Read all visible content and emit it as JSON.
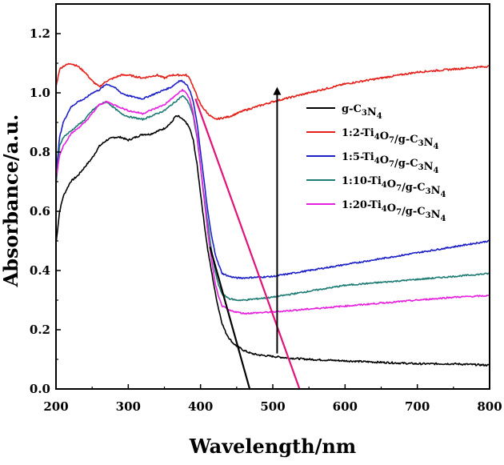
{
  "chart_data": {
    "type": "line",
    "xlabel": "Wavelength/nm",
    "ylabel": "Absorbance/a.u.",
    "xlim": [
      200,
      800
    ],
    "ylim": [
      0.0,
      1.3
    ],
    "xticks": [
      200,
      300,
      400,
      500,
      600,
      700,
      800
    ],
    "xtick_labels": [
      "200",
      "300",
      "400",
      "500",
      "600",
      "700",
      "800"
    ],
    "yticks": [
      0.0,
      0.2,
      0.4,
      0.6,
      0.8,
      1.0,
      1.2
    ],
    "ytick_labels": [
      "0.0",
      "0.2",
      "0.4",
      "0.6",
      "0.8",
      "1.0",
      "1.2"
    ],
    "legend_position": "right-center",
    "series": [
      {
        "name": "g-C3N4",
        "label_parts": [
          [
            "g-C",
            false
          ],
          [
            "3",
            true
          ],
          [
            "N",
            false
          ],
          [
            "4",
            true
          ]
        ],
        "color": "#000000",
        "x": [
          200,
          205,
          210,
          220,
          230,
          240,
          250,
          260,
          270,
          280,
          290,
          300,
          310,
          320,
          330,
          340,
          350,
          360,
          365,
          370,
          375,
          380,
          385,
          390,
          395,
          400,
          405,
          410,
          415,
          420,
          425,
          430,
          435,
          440,
          445,
          450,
          460,
          470,
          480,
          500,
          520,
          550,
          600,
          650,
          700,
          750,
          800
        ],
        "y": [
          0.49,
          0.6,
          0.65,
          0.7,
          0.72,
          0.75,
          0.78,
          0.82,
          0.84,
          0.85,
          0.85,
          0.84,
          0.85,
          0.86,
          0.86,
          0.87,
          0.88,
          0.9,
          0.92,
          0.92,
          0.91,
          0.9,
          0.88,
          0.84,
          0.76,
          0.66,
          0.56,
          0.47,
          0.4,
          0.33,
          0.27,
          0.22,
          0.19,
          0.17,
          0.155,
          0.145,
          0.13,
          0.12,
          0.115,
          0.11,
          0.105,
          0.1,
          0.095,
          0.09,
          0.085,
          0.085,
          0.08
        ],
        "noise": 0.006
      },
      {
        "name": "1:2-Ti4O7/g-C3N4",
        "label_parts": [
          [
            "1:2-Ti",
            false
          ],
          [
            "4",
            true
          ],
          [
            "O",
            false
          ],
          [
            "7",
            true
          ],
          [
            "/g-C",
            false
          ],
          [
            "3",
            true
          ],
          [
            "N",
            false
          ],
          [
            "4",
            true
          ]
        ],
        "color": "#e5201b",
        "x": [
          200,
          205,
          210,
          220,
          230,
          240,
          250,
          260,
          270,
          280,
          290,
          300,
          320,
          340,
          350,
          360,
          370,
          380,
          385,
          390,
          395,
          400,
          410,
          420,
          440,
          460,
          500,
          550,
          600,
          650,
          700,
          750,
          800
        ],
        "y": [
          1.02,
          1.08,
          1.09,
          1.1,
          1.09,
          1.07,
          1.04,
          1.02,
          1.04,
          1.05,
          1.06,
          1.06,
          1.05,
          1.06,
          1.05,
          1.06,
          1.06,
          1.06,
          1.05,
          1.02,
          0.99,
          0.96,
          0.93,
          0.91,
          0.92,
          0.94,
          0.97,
          1.0,
          1.03,
          1.05,
          1.07,
          1.08,
          1.09
        ],
        "noise": 0.006
      },
      {
        "name": "1:5-Ti4O7/g-C3N4",
        "label_parts": [
          [
            "1:5-Ti",
            false
          ],
          [
            "4",
            true
          ],
          [
            "O",
            false
          ],
          [
            "7",
            true
          ],
          [
            "/g-C",
            false
          ],
          [
            "3",
            true
          ],
          [
            "N",
            false
          ],
          [
            "4",
            true
          ]
        ],
        "color": "#1d1fc8",
        "x": [
          200,
          205,
          210,
          220,
          230,
          240,
          250,
          260,
          270,
          280,
          290,
          300,
          320,
          340,
          350,
          360,
          370,
          375,
          380,
          385,
          390,
          395,
          400,
          405,
          410,
          415,
          420,
          425,
          430,
          440,
          450,
          460,
          500,
          550,
          600,
          650,
          700,
          750,
          800
        ],
        "y": [
          0.72,
          0.85,
          0.9,
          0.95,
          0.97,
          0.98,
          1.0,
          1.01,
          1.03,
          1.02,
          1.0,
          0.99,
          0.98,
          1.0,
          1.01,
          1.02,
          1.04,
          1.04,
          1.03,
          1.01,
          0.97,
          0.9,
          0.8,
          0.7,
          0.6,
          0.52,
          0.46,
          0.42,
          0.39,
          0.38,
          0.375,
          0.375,
          0.38,
          0.4,
          0.42,
          0.44,
          0.46,
          0.48,
          0.5
        ],
        "noise": 0.005
      },
      {
        "name": "1:10-Ti4O7/g-C3N4",
        "label_parts": [
          [
            "1:10-Ti",
            false
          ],
          [
            "4",
            true
          ],
          [
            "O",
            false
          ],
          [
            "7",
            true
          ],
          [
            "/g-C",
            false
          ],
          [
            "3",
            true
          ],
          [
            "N",
            false
          ],
          [
            "4",
            true
          ]
        ],
        "color": "#1d7b74",
        "x": [
          200,
          205,
          210,
          220,
          230,
          240,
          250,
          260,
          270,
          280,
          290,
          300,
          320,
          340,
          350,
          360,
          370,
          375,
          380,
          385,
          390,
          395,
          400,
          405,
          410,
          415,
          420,
          425,
          430,
          440,
          450,
          460,
          500,
          550,
          600,
          650,
          700,
          750,
          800
        ],
        "y": [
          0.69,
          0.82,
          0.85,
          0.87,
          0.89,
          0.91,
          0.94,
          0.96,
          0.97,
          0.95,
          0.93,
          0.92,
          0.91,
          0.93,
          0.94,
          0.96,
          0.98,
          0.99,
          0.98,
          0.96,
          0.92,
          0.85,
          0.75,
          0.65,
          0.56,
          0.47,
          0.4,
          0.35,
          0.32,
          0.305,
          0.3,
          0.3,
          0.31,
          0.33,
          0.35,
          0.36,
          0.37,
          0.38,
          0.39
        ],
        "noise": 0.005
      },
      {
        "name": "1:20-Ti4O7/g-C3N4",
        "label_parts": [
          [
            "1:20-Ti",
            false
          ],
          [
            "4",
            true
          ],
          [
            "O",
            false
          ],
          [
            "7",
            true
          ],
          [
            "/g-C",
            false
          ],
          [
            "3",
            true
          ],
          [
            "N",
            false
          ],
          [
            "4",
            true
          ]
        ],
        "color": "#e81ee0",
        "x": [
          200,
          205,
          210,
          220,
          230,
          240,
          250,
          260,
          270,
          280,
          290,
          300,
          320,
          340,
          350,
          360,
          370,
          375,
          380,
          385,
          390,
          395,
          400,
          405,
          410,
          415,
          420,
          425,
          430,
          440,
          450,
          460,
          500,
          550,
          600,
          650,
          700,
          750,
          800
        ],
        "y": [
          0.71,
          0.79,
          0.82,
          0.86,
          0.88,
          0.9,
          0.93,
          0.96,
          0.97,
          0.96,
          0.95,
          0.94,
          0.93,
          0.95,
          0.96,
          0.98,
          1.0,
          1.01,
          1.0,
          0.98,
          0.93,
          0.86,
          0.75,
          0.64,
          0.53,
          0.44,
          0.36,
          0.31,
          0.28,
          0.265,
          0.26,
          0.255,
          0.26,
          0.27,
          0.28,
          0.29,
          0.3,
          0.31,
          0.315
        ],
        "noise": 0.005
      }
    ],
    "annotations": {
      "tangent_lines": [
        {
          "from": [
            413,
            0.48
          ],
          "to": [
            468,
            0.0
          ],
          "color": "#000000"
        },
        {
          "from": [
            393,
            0.98
          ],
          "to": [
            537,
            0.0
          ],
          "color": "#e0137a"
        }
      ],
      "arrows": [
        {
          "from": [
            506,
            0.12
          ],
          "to": [
            506,
            1.02
          ],
          "color": "#000000",
          "direction": "up"
        }
      ]
    }
  }
}
